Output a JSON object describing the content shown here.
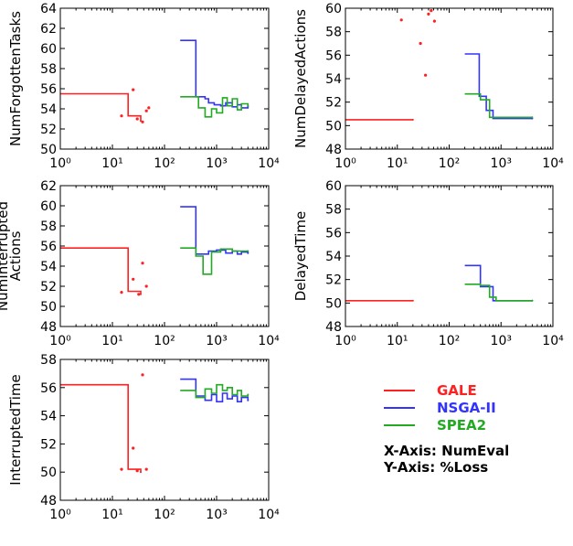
{
  "colors": {
    "GALE": "#ff2020",
    "NSGA-II": "#3333ff",
    "SPEA2": "#22aa22"
  },
  "legend": {
    "entries": [
      "GALE",
      "NSGA-II",
      "SPEA2"
    ],
    "x_axis_note": "X-Axis: NumEval",
    "y_axis_note": "Y-Axis: %Loss"
  },
  "chart_data": [
    {
      "type": "line",
      "ylabel": "NumForgottenTasks",
      "xscale": "log",
      "xlim": [
        1,
        10000
      ],
      "xticks": [
        "10⁰",
        "10¹",
        "10²",
        "10³",
        "10⁴"
      ],
      "ylim": [
        50,
        64
      ],
      "yticks": [
        50,
        52,
        54,
        56,
        58,
        60,
        62,
        64
      ],
      "series": [
        {
          "name": "GALE",
          "style": "step",
          "x": [
            1,
            20,
            20,
            35,
            35
          ],
          "y": [
            55.5,
            55.5,
            53.3,
            53.3,
            52.8
          ]
        },
        {
          "name": "NSGA-II",
          "style": "step",
          "x": [
            200,
            400,
            400,
            600,
            700,
            900,
            1200,
            1500,
            2000,
            2500,
            3000,
            4000
          ],
          "y": [
            60.8,
            60.8,
            55.2,
            55.0,
            54.6,
            54.4,
            54.3,
            54.6,
            54.2,
            54.4,
            54.1,
            54.2
          ]
        },
        {
          "name": "SPEA2",
          "style": "step",
          "x": [
            200,
            450,
            450,
            600,
            800,
            1000,
            1300,
            1600,
            2000,
            2500,
            3000,
            4000
          ],
          "y": [
            55.2,
            55.2,
            54.1,
            53.2,
            54.0,
            53.6,
            55.1,
            54.3,
            55.0,
            53.9,
            54.5,
            54.3
          ]
        },
        {
          "name": "GALE",
          "style": "points",
          "x": [
            15,
            25,
            30,
            38,
            45,
            50
          ],
          "y": [
            53.3,
            55.9,
            53.0,
            52.7,
            53.8,
            54.1
          ]
        }
      ]
    },
    {
      "type": "line",
      "ylabel": "NumDelayedActions",
      "xscale": "log",
      "xlim": [
        1,
        10000
      ],
      "xticks": [
        "10⁰",
        "10¹",
        "10²",
        "10³",
        "10⁴"
      ],
      "ylim": [
        48,
        60
      ],
      "yticks": [
        48,
        50,
        52,
        54,
        56,
        58,
        60
      ],
      "series": [
        {
          "name": "GALE",
          "style": "step",
          "x": [
            1,
            20
          ],
          "y": [
            50.5,
            50.5
          ]
        },
        {
          "name": "NSGA-II",
          "style": "step",
          "x": [
            200,
            380,
            380,
            520,
            520,
            700,
            700,
            1000,
            4000
          ],
          "y": [
            56.1,
            56.1,
            52.5,
            52.5,
            51.3,
            51.3,
            50.6,
            50.6,
            50.6
          ]
        },
        {
          "name": "SPEA2",
          "style": "step",
          "x": [
            200,
            400,
            400,
            600,
            600,
            800,
            4000
          ],
          "y": [
            52.7,
            52.7,
            52.2,
            52.2,
            50.7,
            50.7,
            50.7
          ]
        },
        {
          "name": "GALE",
          "style": "points",
          "x": [
            12,
            28,
            35,
            40,
            45,
            52
          ],
          "y": [
            59.0,
            57.0,
            54.3,
            59.5,
            59.8,
            58.9
          ]
        }
      ]
    },
    {
      "type": "line",
      "ylabel": "NumInterrupted Actions",
      "xscale": "log",
      "xlim": [
        1,
        10000
      ],
      "xticks": [
        "10⁰",
        "10¹",
        "10²",
        "10³",
        "10⁴"
      ],
      "ylim": [
        48,
        62
      ],
      "yticks": [
        48,
        50,
        52,
        54,
        56,
        58,
        60,
        62
      ],
      "series": [
        {
          "name": "GALE",
          "style": "step",
          "x": [
            1,
            20,
            20,
            35,
            35
          ],
          "y": [
            55.8,
            55.8,
            51.5,
            51.5,
            51.2
          ]
        },
        {
          "name": "NSGA-II",
          "style": "step",
          "x": [
            200,
            400,
            400,
            700,
            1000,
            1500,
            2000,
            2500,
            3000,
            4000
          ],
          "y": [
            59.9,
            59.9,
            55.2,
            55.5,
            55.6,
            55.3,
            55.5,
            55.2,
            55.4,
            55.3
          ]
        },
        {
          "name": "SPEA2",
          "style": "step",
          "x": [
            200,
            400,
            400,
            550,
            550,
            800,
            1200,
            2000,
            4000
          ],
          "y": [
            55.8,
            55.8,
            55.0,
            55.0,
            53.2,
            55.4,
            55.7,
            55.5,
            55.5
          ]
        },
        {
          "name": "GALE",
          "style": "points",
          "x": [
            15,
            25,
            32,
            38,
            45
          ],
          "y": [
            51.4,
            52.7,
            51.2,
            54.3,
            52.0
          ]
        }
      ]
    },
    {
      "type": "line",
      "ylabel": "DelayedTime",
      "xscale": "log",
      "xlim": [
        1,
        10000
      ],
      "xticks": [
        "10⁰",
        "10¹",
        "10²",
        "10³",
        "10⁴"
      ],
      "ylim": [
        48,
        60
      ],
      "yticks": [
        48,
        50,
        52,
        54,
        56,
        58,
        60
      ],
      "series": [
        {
          "name": "GALE",
          "style": "step",
          "x": [
            1,
            20
          ],
          "y": [
            50.2,
            50.2
          ]
        },
        {
          "name": "NSGA-II",
          "style": "step",
          "x": [
            200,
            400,
            400,
            700,
            700,
            4000
          ],
          "y": [
            53.2,
            53.2,
            51.4,
            51.4,
            50.2,
            50.2
          ]
        },
        {
          "name": "SPEA2",
          "style": "step",
          "x": [
            200,
            400,
            400,
            600,
            600,
            800,
            4000
          ],
          "y": [
            51.6,
            51.6,
            51.5,
            51.5,
            50.5,
            50.2,
            50.2
          ]
        }
      ]
    },
    {
      "type": "line",
      "ylabel": "InterruptedTime",
      "xscale": "log",
      "xlim": [
        1,
        10000
      ],
      "xticks": [
        "10⁰",
        "10¹",
        "10²",
        "10³",
        "10⁴"
      ],
      "ylim": [
        48,
        58
      ],
      "yticks": [
        48,
        50,
        52,
        54,
        56,
        58
      ],
      "series": [
        {
          "name": "GALE",
          "style": "step",
          "x": [
            1,
            20,
            20,
            35,
            35
          ],
          "y": [
            56.2,
            56.2,
            50.2,
            50.2,
            50.0
          ]
        },
        {
          "name": "NSGA-II",
          "style": "step",
          "x": [
            200,
            400,
            400,
            600,
            800,
            1000,
            1300,
            1600,
            2000,
            2500,
            3000,
            4000
          ],
          "y": [
            56.6,
            56.6,
            55.4,
            55.1,
            55.5,
            55.0,
            55.6,
            55.2,
            55.4,
            55.0,
            55.3,
            55.1
          ]
        },
        {
          "name": "SPEA2",
          "style": "step",
          "x": [
            200,
            400,
            400,
            600,
            800,
            1000,
            1300,
            1600,
            2000,
            2500,
            3000,
            4000
          ],
          "y": [
            55.8,
            55.8,
            55.3,
            55.9,
            55.6,
            56.2,
            55.8,
            56.0,
            55.5,
            55.8,
            55.4,
            55.5
          ]
        },
        {
          "name": "GALE",
          "style": "points",
          "x": [
            15,
            25,
            30,
            38,
            45
          ],
          "y": [
            50.2,
            51.7,
            50.1,
            56.9,
            50.2
          ]
        }
      ]
    }
  ]
}
